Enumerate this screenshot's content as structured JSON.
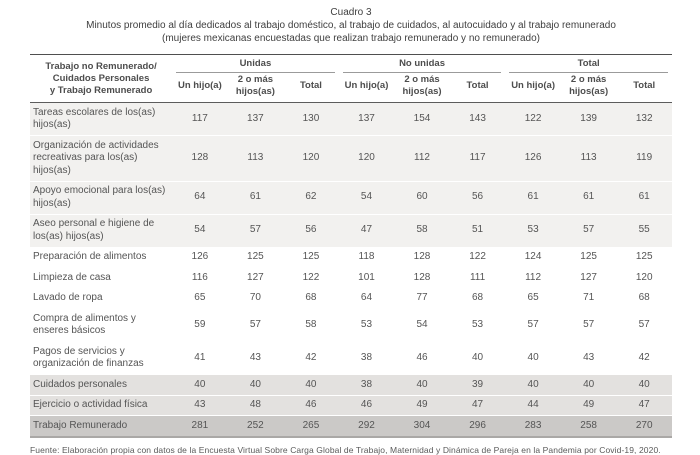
{
  "chart_data": {
    "type": "table",
    "table_number": "Cuadro 3",
    "title": "Minutos promedio al día dedicados al trabajo doméstico, al trabajo de cuidados, al autocuidado y al trabajo remunerado",
    "population_note": "(mujeres mexicanas encuestadas que realizan trabajo remunerado y no remunerado)",
    "header_label": "Trabajo no Remunerado/\nCuidados Personales\ny Trabajo Remunerado",
    "groups": [
      "Unidas",
      "No unidas",
      "Total"
    ],
    "subcolumns": [
      "Un hijo(a)",
      "2 o más hijos(as)",
      "Total"
    ],
    "rows": [
      {
        "label": "Tareas escolares de los(as) hijos(as)",
        "block": "light",
        "values": [
          117,
          137,
          130,
          137,
          154,
          143,
          122,
          139,
          132
        ]
      },
      {
        "label": "Organización de actividades recreativas para los(as) hijos(as)",
        "block": "light",
        "values": [
          128,
          113,
          120,
          120,
          112,
          117,
          126,
          113,
          119
        ]
      },
      {
        "label": "Apoyo emocional para los(as) hijos(as)",
        "block": "light",
        "values": [
          64,
          61,
          62,
          54,
          60,
          56,
          61,
          61,
          61
        ]
      },
      {
        "label": "Aseo personal e higiene de los(as) hijos(as)",
        "block": "light",
        "values": [
          54,
          57,
          56,
          47,
          58,
          51,
          53,
          57,
          55
        ]
      },
      {
        "label": "Preparación de alimentos",
        "block": "white",
        "values": [
          126,
          125,
          125,
          118,
          128,
          122,
          124,
          125,
          125
        ]
      },
      {
        "label": "Limpieza de casa",
        "block": "white",
        "values": [
          116,
          127,
          122,
          101,
          128,
          111,
          112,
          127,
          120
        ]
      },
      {
        "label": "Lavado de ropa",
        "block": "white",
        "values": [
          65,
          70,
          68,
          64,
          77,
          68,
          65,
          71,
          68
        ]
      },
      {
        "label": "Compra de alimentos y enseres básicos",
        "block": "white",
        "values": [
          59,
          57,
          58,
          53,
          54,
          53,
          57,
          57,
          57
        ]
      },
      {
        "label": "Pagos de servicios y organización de finanzas",
        "block": "white",
        "values": [
          41,
          43,
          42,
          38,
          46,
          40,
          40,
          43,
          42
        ]
      },
      {
        "label": "Cuidados personales",
        "block": "medium",
        "values": [
          40,
          40,
          40,
          38,
          40,
          39,
          40,
          40,
          40
        ]
      },
      {
        "label": "Ejercicio o actividad física",
        "block": "medium",
        "values": [
          43,
          48,
          46,
          46,
          49,
          47,
          44,
          49,
          47
        ]
      },
      {
        "label": "Trabajo Remunerado",
        "block": "dark",
        "values": [
          281,
          252,
          265,
          292,
          304,
          296,
          283,
          258,
          270
        ]
      }
    ],
    "source": "Fuente: Elaboración propia con datos de la Encuesta Virtual Sobre Carga Global de Trabajo, Maternidad y Dinámica de Pareja en la Pandemia por Covid-19, 2020.",
    "colors": {
      "block_light": "#f2f1ef",
      "block_white": "#ffffff",
      "block_medium": "#e3e1df",
      "block_dark": "#cbc9c7",
      "header_text": "#4d4d4d",
      "body_text": "#555555",
      "rule_dark": "#4f4f4f",
      "rule_group": "#9b9b9b",
      "rule_bottom": "#aaa8a6"
    },
    "layout": {
      "grid": false,
      "legend": "none"
    }
  }
}
